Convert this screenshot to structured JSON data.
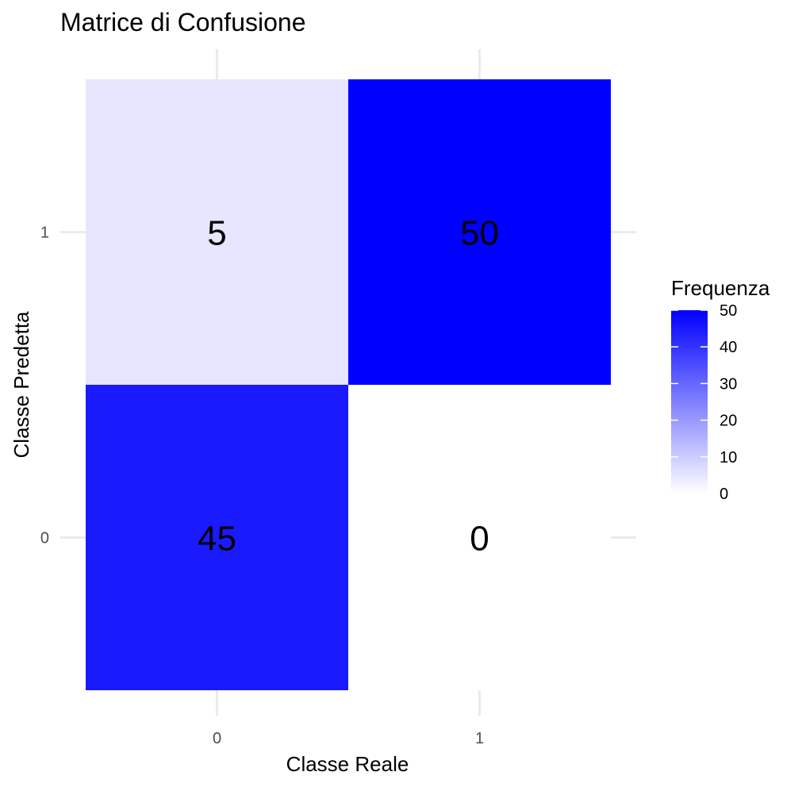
{
  "chart_data": {
    "type": "heatmap",
    "title": "Matrice di Confusione",
    "xlabel": "Classe Reale",
    "ylabel": "Classe Predetta",
    "x_categories": [
      "0",
      "1"
    ],
    "y_categories": [
      "0",
      "1"
    ],
    "cells": [
      {
        "x": "0",
        "y": "1",
        "value": 5
      },
      {
        "x": "1",
        "y": "1",
        "value": 50
      },
      {
        "x": "0",
        "y": "0",
        "value": 45
      },
      {
        "x": "1",
        "y": "0",
        "value": 0
      }
    ],
    "legend": {
      "title": "Frequenza",
      "placement": "right",
      "ticks": [
        0,
        10,
        20,
        30,
        40,
        50
      ],
      "range": [
        0,
        50
      ]
    },
    "colors": {
      "low": "#ffffff",
      "high": "#0000ff",
      "grid": "#ebebeb",
      "text": "#000000",
      "tick_text": "#4d4d4d"
    },
    "grid": true
  }
}
